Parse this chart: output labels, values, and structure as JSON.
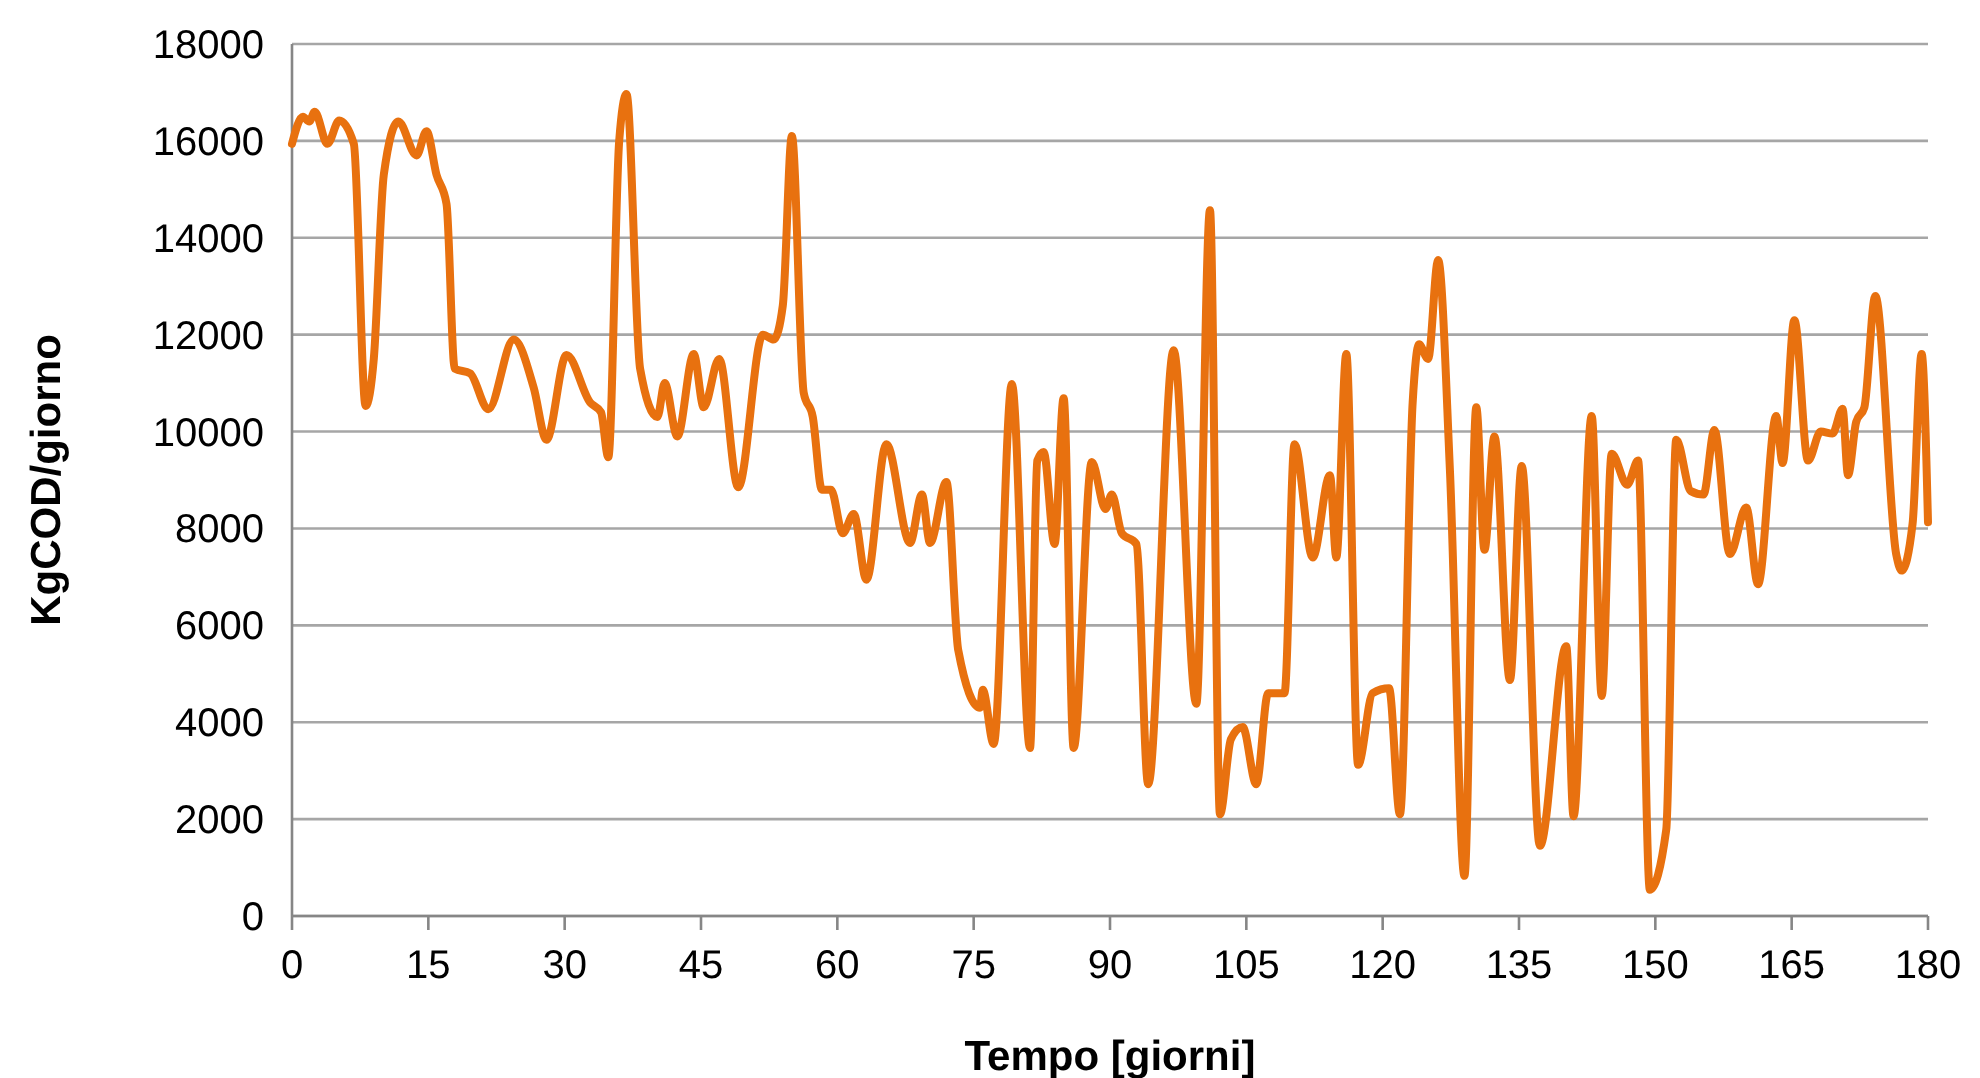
{
  "chart_data": {
    "type": "line",
    "xlabel": "Tempo [giorni]",
    "ylabel": "KgCOD/giorno",
    "xlim": [
      0,
      180
    ],
    "xticks": [
      0,
      15,
      30,
      45,
      60,
      75,
      90,
      105,
      120,
      135,
      150,
      165,
      180
    ],
    "ylim": [
      0,
      18000
    ],
    "yticks": [
      0,
      2000,
      4000,
      6000,
      8000,
      10000,
      12000,
      14000,
      16000,
      18000
    ],
    "grid": "y",
    "marker": "none",
    "line_style": "solid",
    "series": [
      {
        "color": "#e8710f",
        "x": [
          0,
          1.2,
          1.9,
          2.5,
          3.9,
          5.2,
          6.8,
          8.1,
          9,
          10.1,
          11.7,
          13.7,
          14.8,
          15.9,
          17,
          17.9,
          19.6,
          21.6,
          24.4,
          26.6,
          28,
          30.2,
          32.8,
          34,
          34.8,
          36,
          36.8,
          38.3,
          40.2,
          41,
          42.4,
          44.2,
          45.3,
          47,
          49.1,
          51.8,
          53,
          54,
          55,
          56.3,
          57.3,
          58.3,
          59.3,
          60.6,
          61.8,
          63.2,
          65.4,
          68,
          69.3,
          70.2,
          72,
          73.3,
          75.7,
          76,
          77.2,
          79.2,
          81.2,
          82,
          82.7,
          83.9,
          84.9,
          86,
          88,
          89.5,
          90.2,
          91.3,
          92.9,
          94.2,
          97,
          99.5,
          101,
          102.1,
          103.3,
          104.6,
          106.1,
          107.4,
          109.2,
          110.3,
          112.3,
          114.2,
          114.9,
          116,
          117.3,
          118.9,
          120.7,
          121.9,
          123.3,
          124,
          125,
          126.1,
          127.4,
          129,
          130.3,
          131.2,
          132.3,
          134,
          135.3,
          137.3,
          140.2,
          141,
          143,
          144.1,
          145.2,
          146.9,
          148.1,
          149.4,
          151.2,
          152.3,
          153.9,
          155.3,
          156.5,
          158.2,
          160,
          161.3,
          163.3,
          164,
          165.3,
          166.8,
          168.2,
          169.5,
          170.6,
          171.2,
          172.1,
          173,
          174.2,
          176.5,
          177.1,
          178.3,
          179.3,
          180
        ],
        "values": [
          15940,
          16500,
          16400,
          16600,
          15940,
          16420,
          15940,
          10530,
          11500,
          15300,
          16400,
          15700,
          16200,
          15300,
          14700,
          11300,
          11200,
          10460,
          11900,
          10900,
          9830,
          11580,
          10600,
          10400,
          9470,
          16000,
          16970,
          11300,
          10300,
          11000,
          9900,
          11600,
          10500,
          11500,
          8850,
          12000,
          11900,
          12600,
          16100,
          10800,
          10300,
          8800,
          8800,
          7900,
          8300,
          6940,
          9740,
          7700,
          8700,
          7700,
          8960,
          5490,
          4300,
          4670,
          3550,
          10980,
          3470,
          9400,
          9580,
          7680,
          10690,
          3470,
          9370,
          8400,
          8700,
          7900,
          7680,
          2720,
          11680,
          4380,
          14570,
          2100,
          3650,
          3900,
          2720,
          4600,
          4600,
          9740,
          7400,
          9100,
          7400,
          11600,
          3120,
          4600,
          4700,
          2100,
          10600,
          11800,
          11500,
          13540,
          9200,
          830,
          10500,
          7560,
          9900,
          4870,
          9290,
          1450,
          5570,
          2060,
          10320,
          4540,
          9540,
          8900,
          9400,
          540,
          1780,
          9830,
          8770,
          8700,
          10030,
          7470,
          8430,
          6850,
          10320,
          9350,
          12300,
          9400,
          10000,
          9960,
          10470,
          9100,
          10200,
          10500,
          12800,
          7470,
          7130,
          8090,
          11600,
          8130
        ]
      }
    ]
  }
}
